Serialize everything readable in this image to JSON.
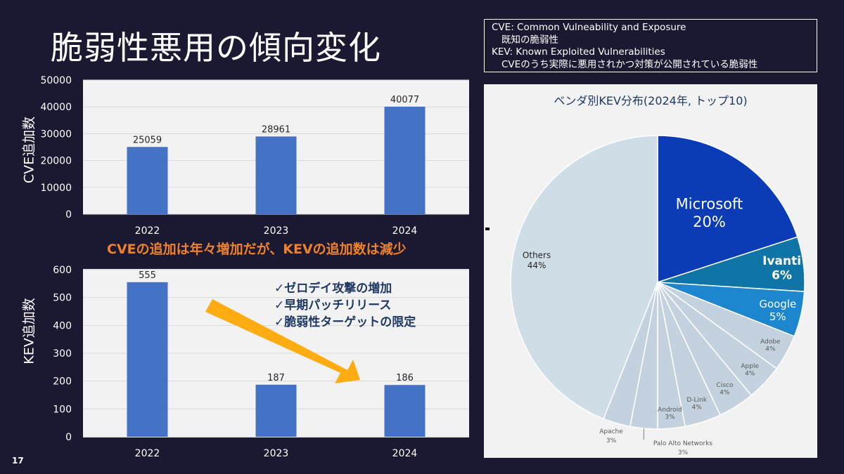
{
  "slide": {
    "title": "脆弱性悪用の傾向変化",
    "page_number": "17",
    "highlight": "CVEの追加は年々増加だが、KEVの追加数は減少"
  },
  "legend": {
    "line1": "CVE: Common Vulneability and Exposure",
    "line2": "既知の脆弱性",
    "line3": "KEV: Known Exploited Vulnerabilities",
    "line4": "CVEのうち実際に悪用されかつ対策が公開されている脆弱性"
  },
  "reasons": [
    "✓ゼロデイ攻撃の増加",
    "✓早期パッチリリース",
    "✓脆弱性ターゲットの限定"
  ],
  "colors": {
    "bar": "#4472c4",
    "arrow": "#ffab12",
    "highlight": "#f0812b",
    "microsoft": "#0b3bb5",
    "ivanti": "#0f75a6",
    "google": "#1c86cf",
    "minor": "#c3d2de",
    "others": "#cfdde6"
  },
  "chart_data": [
    {
      "type": "bar",
      "title": "",
      "categories": [
        "2022",
        "2023",
        "2024"
      ],
      "values": [
        25059,
        28961,
        40077
      ],
      "ylabel": "CVE追加数",
      "ylim": [
        0,
        50000
      ],
      "yticks": [
        0,
        10000,
        20000,
        30000,
        40000,
        50000
      ],
      "grid": true
    },
    {
      "type": "bar",
      "title": "",
      "categories": [
        "2022",
        "2023",
        "2024"
      ],
      "values": [
        555,
        187,
        186
      ],
      "ylabel": "KEV追加数",
      "ylim": [
        0,
        600
      ],
      "yticks": [
        0,
        100,
        200,
        300,
        400,
        500,
        600
      ],
      "grid": true
    },
    {
      "type": "pie",
      "title": "ベンダ別KEV分布(2024年, トップ10)",
      "labels": [
        "Microsoft",
        "Ivanti",
        "Google",
        "Adobe",
        "Apple",
        "Cisco",
        "D-Link",
        "Android",
        "Palo Alto Networks",
        "Apache",
        "Others"
      ],
      "values": [
        20,
        6,
        5,
        4,
        4,
        4,
        4,
        3,
        3,
        3,
        44
      ],
      "value_labels": [
        "20%",
        "6%",
        "5%",
        "4%",
        "4%",
        "4%",
        "4%",
        "3%",
        "3%",
        "3%",
        "44%"
      ]
    }
  ]
}
